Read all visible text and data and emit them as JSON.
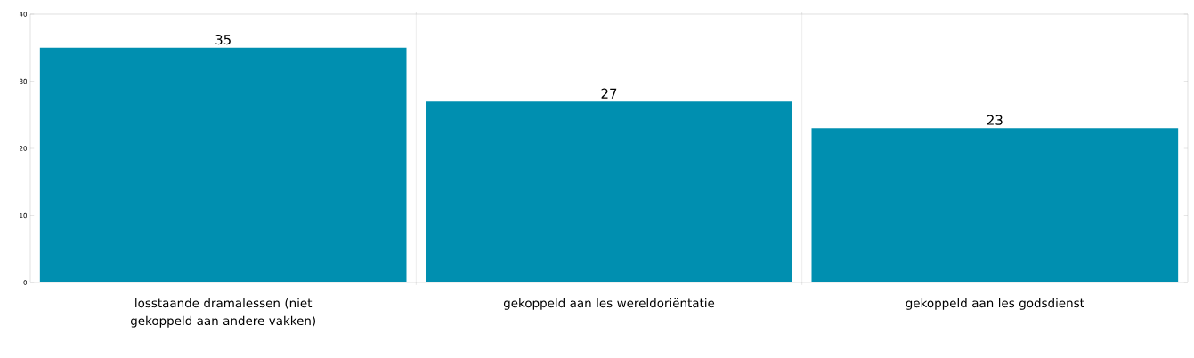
{
  "chart_data": {
    "type": "bar",
    "categories": [
      "losstaande dramalessen (niet gekoppeld aan andere vakken)",
      "gekoppeld aan les wereldoriëntatie",
      "gekoppeld aan les godsdienst"
    ],
    "values": [
      35,
      27,
      23
    ],
    "color": "#008fb0",
    "ylim": [
      0,
      40
    ],
    "yticks": [
      0,
      10,
      20,
      30,
      40
    ],
    "grid": "x",
    "data_labels": true
  }
}
